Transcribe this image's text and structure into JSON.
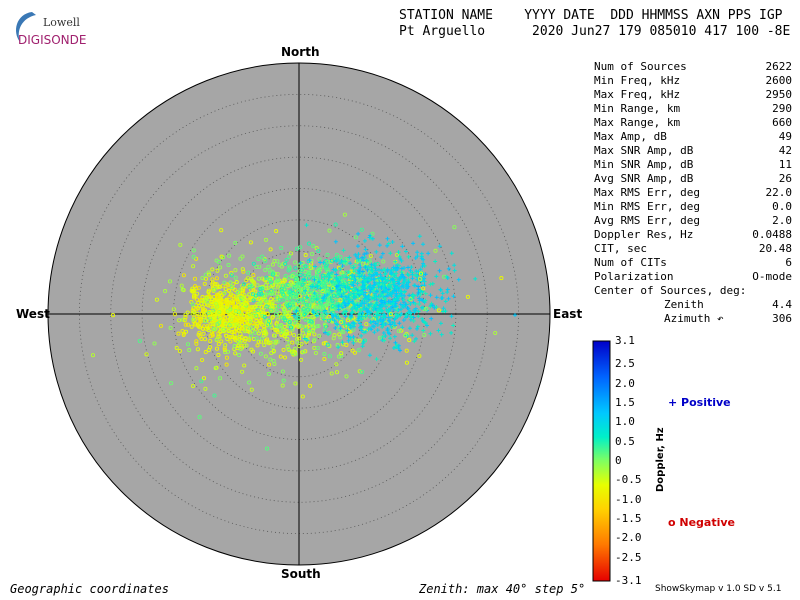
{
  "logo": {
    "line1": "Lowell",
    "line2": "DIGISONDE"
  },
  "header": {
    "line1": "STATION NAME    YYYY DATE  DDD HHMMSS AXN PPS IGP",
    "line2": "Pt Arguello      2020 Jun27 179 085010 417 100 -8E"
  },
  "directions": {
    "north": "North",
    "south": "South",
    "east": "East",
    "west": "West"
  },
  "stats": [
    {
      "label": "Num of Sources",
      "value": "2622"
    },
    {
      "label": "Min Freq, kHz",
      "value": "2600"
    },
    {
      "label": "Max Freq, kHz",
      "value": "2950"
    },
    {
      "label": "Min Range, km",
      "value": "290"
    },
    {
      "label": "Max Range, km",
      "value": "660"
    },
    {
      "label": "Max Amp, dB",
      "value": "49"
    },
    {
      "label": "Max SNR Amp, dB",
      "value": "42"
    },
    {
      "label": "Min SNR Amp, dB",
      "value": "11"
    },
    {
      "label": "Avg SNR Amp, dB",
      "value": "26"
    },
    {
      "label": "Max RMS Err, deg",
      "value": "22.0"
    },
    {
      "label": "Min RMS Err, deg",
      "value": "0.0"
    },
    {
      "label": "Avg RMS Err, deg",
      "value": "2.0"
    },
    {
      "label": "Doppler Res, Hz",
      "value": "0.0488"
    },
    {
      "label": "CIT, sec",
      "value": "20.48"
    },
    {
      "label": "Num of CITs",
      "value": "6"
    },
    {
      "label": "Polarization",
      "value": "O-mode"
    }
  ],
  "center": {
    "title": "Center of Sources, deg:",
    "zenith_label": "Zenith",
    "zenith_value": "4.4",
    "azimuth_label": "Azimuth ↶",
    "azimuth_value": "306"
  },
  "legend": {
    "positive": "+ Positive",
    "negative": "o Negative",
    "doppler_label": "Doppler, Hz"
  },
  "footer": {
    "left": "Geographic coordinates",
    "middle": "Zenith: max 40°  step 5°",
    "version": "ShowSkymap v 1.0   SD v 5.1"
  },
  "colors": {
    "disk": "#a6a6a6",
    "positive": "#0000c8",
    "negative": "#d00000",
    "logo_blue": "#3a78b5",
    "logo_magenta": "#a0206e"
  },
  "chart_data": {
    "type": "scatter",
    "projection": "polar",
    "zenith_max_deg": 40,
    "zenith_step_deg": 5,
    "colorbar": {
      "label": "Doppler, Hz",
      "range": [
        -3.1,
        3.1
      ],
      "ticks": [
        "3.1",
        "2.5",
        "2.0",
        "1.5",
        "1.0",
        "0.5",
        "0",
        "-0.5",
        "-1.0",
        "-1.5",
        "-2.0",
        "-2.5",
        "-3.1"
      ]
    },
    "clusters": [
      {
        "marker": "o",
        "center_east_deg": -11,
        "center_north_deg": 0,
        "spread_east_deg": 3.5,
        "spread_north_deg": 2.5,
        "count": 550,
        "doppler": [
          -1.0,
          -0.5
        ]
      },
      {
        "marker": "o",
        "center_east_deg": -2,
        "center_north_deg": 0.5,
        "spread_east_deg": 7,
        "spread_north_deg": 4.5,
        "count": 650,
        "doppler": [
          -0.8,
          0.1
        ]
      },
      {
        "marker": "o",
        "center_east_deg": 4,
        "center_north_deg": 3.5,
        "spread_east_deg": 5,
        "spread_north_deg": 3,
        "count": 550,
        "doppler": [
          0.0,
          0.6
        ]
      },
      {
        "marker": "+",
        "center_east_deg": 13,
        "center_north_deg": 3,
        "spread_east_deg": 5,
        "spread_north_deg": 3.5,
        "count": 800,
        "doppler": [
          0.5,
          1.4
        ]
      },
      {
        "marker": "o",
        "center_east_deg": 0,
        "center_north_deg": -1,
        "spread_east_deg": 14,
        "spread_north_deg": 8,
        "count": 72,
        "doppler": [
          -0.8,
          0.3
        ]
      }
    ]
  }
}
